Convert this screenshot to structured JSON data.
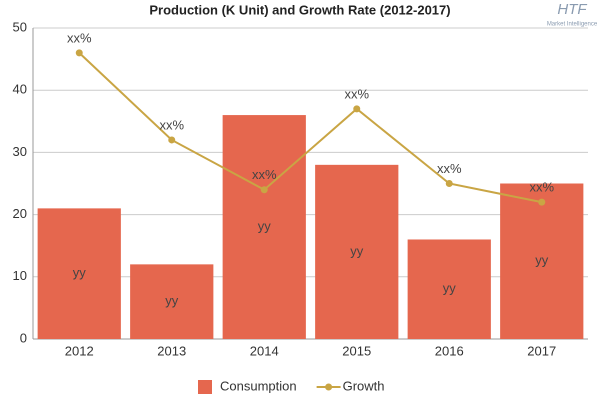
{
  "chart_data": {
    "type": "bar-line",
    "title": "Production (K Unit) and Growth Rate (2012-2017)",
    "logo": "HTF",
    "logo_subtitle": "Market Intelligence",
    "categories": [
      "2012",
      "2013",
      "2014",
      "2015",
      "2016",
      "2017"
    ],
    "series": [
      {
        "name": "Consumption",
        "type": "bar",
        "color": "#e5674e",
        "values": [
          21,
          12,
          36,
          28,
          16,
          25
        ],
        "value_labels": [
          "yy",
          "yy",
          "yy",
          "yy",
          "yy",
          "yy"
        ]
      },
      {
        "name": "Growth",
        "type": "line",
        "color": "#c9a544",
        "values": [
          46,
          32,
          24,
          37,
          25,
          22
        ],
        "value_labels": [
          "xx%",
          "xx%",
          "xx%",
          "xx%",
          "xx%",
          "xx%"
        ]
      }
    ],
    "ylim": [
      0,
      50
    ],
    "yticks": [
      0,
      10,
      20,
      30,
      40,
      50
    ],
    "grid": true,
    "legend": "bottom"
  }
}
